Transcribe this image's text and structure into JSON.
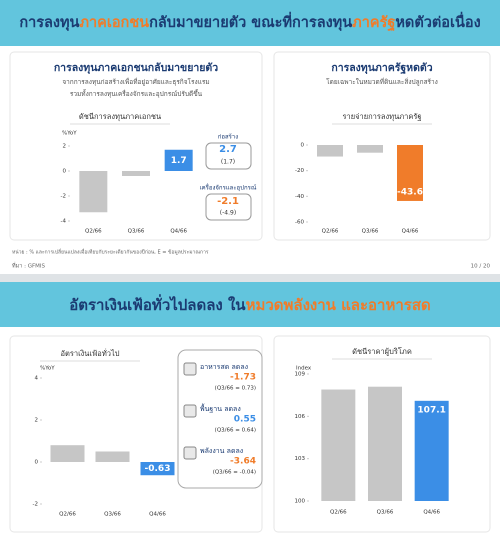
{
  "slides": [
    {
      "title_parts": [
        {
          "text": "การลงทุน",
          "color": "#1b3b72"
        },
        {
          "text": "ภาคเอกชน",
          "color": "#f07c2a"
        },
        {
          "text": "กลับมาขยายตัว ขณะที่การลงทุน",
          "color": "#1b3b72"
        },
        {
          "text": "ภาครัฐ",
          "color": "#f07c2a"
        },
        {
          "text": "หดตัวต่อเนื่อง",
          "color": "#1b3b72"
        }
      ],
      "left": {
        "heading": "การลงทุนภาคเอกชนกลับมาขยายตัว",
        "subtitle": [
          "จากการลงทุนก่อสร้างเพื่อที่อยู่อาศัยและธุรกิจโรงแรม",
          "รวมทั้งการลงทุนเครื่องจักรและอุปกรณ์ปรับดีขึ้น"
        ]
      },
      "components": [
        {
          "name": "ก่อสร้าง",
          "value": 2.7,
          "previous": "(1.7)",
          "color": "#3b8ee6"
        },
        {
          "name": "เครื่องจักรและอุปกรณ์",
          "value": -2.1,
          "previous": "(-4.9)",
          "color": "#f07c2a"
        }
      ],
      "right": {
        "heading": "การลงทุนภาครัฐหดตัว",
        "subtitle": "โดยเฉพาะในหมวดที่ดินและสิ่งปลูกสร้าง"
      },
      "footnote": "หน่วย : % และการเปลี่ยนแปลงเมื่อเทียบกับระยะเดียวกันของปีก่อน, E = ข้อมูลประมาณการ",
      "source": "ที่มา : GFMIS",
      "page": "10 / 20"
    },
    {
      "title_parts": [
        {
          "text": "อัตราเงินเฟ้อทั่วไปลดลง ใน",
          "color": "#1b3b72"
        },
        {
          "text": "หมวดพลังงาน และอาหารสด",
          "color": "#f07c2a"
        }
      ],
      "components": [
        {
          "name": "อาหารสด ลดลง",
          "value": -1.73,
          "note": "(Q3/66 = 0.73)",
          "color": "#f07c2a"
        },
        {
          "name": "พื้นฐาน ลดลง",
          "value": 0.55,
          "note": "(Q3/66 = 0.64)",
          "color": "#3b8ee6"
        },
        {
          "name": "พลังงาน ลดลง",
          "value": -3.64,
          "note": "(Q3/66 = -0.04)",
          "color": "#f07c2a"
        }
      ]
    }
  ],
  "chart_data": [
    {
      "type": "bar",
      "title": "ดัชนีการลงทุนภาคเอกชน",
      "y_label": "%YoY",
      "categories": [
        "Q2/66",
        "Q3/66",
        "Q4/66"
      ],
      "values": [
        -3.3,
        -0.4,
        1.7
      ],
      "value_labels": [
        null,
        null,
        "1.7"
      ],
      "colors": [
        "#c6c6c6",
        "#c6c6c6",
        "#3b8ee6"
      ],
      "ylim": [
        -4,
        2
      ],
      "yticks": [
        2,
        0,
        -2,
        -4
      ]
    },
    {
      "type": "bar",
      "title": "รายจ่ายการลงทุนภาครัฐ",
      "categories": [
        "Q2/66",
        "Q3/66",
        "Q4/66"
      ],
      "values": [
        -9,
        -6,
        -43.6
      ],
      "value_labels": [
        null,
        null,
        "-43.6"
      ],
      "colors": [
        "#c6c6c6",
        "#c6c6c6",
        "#f07c2a"
      ],
      "ylim": [
        -60,
        0
      ],
      "yticks": [
        0,
        -20,
        -40,
        -60
      ]
    },
    {
      "type": "bar",
      "title": "อัตราเงินเฟ้อทั่วไป",
      "y_label": "%YoY",
      "categories": [
        "Q2/66",
        "Q3/66",
        "Q4/66"
      ],
      "values": [
        0.8,
        0.5,
        -0.63
      ],
      "value_labels": [
        null,
        null,
        "-0.63"
      ],
      "colors": [
        "#c6c6c6",
        "#c6c6c6",
        "#3b8ee6"
      ],
      "ylim": [
        -2,
        4
      ],
      "yticks": [
        4,
        2,
        0,
        -2
      ]
    },
    {
      "type": "bar",
      "title": "ดัชนีราคาผู้บริโภค",
      "y_label": "Index",
      "categories": [
        "Q2/66",
        "Q3/66",
        "Q4/66"
      ],
      "values": [
        107.9,
        108.1,
        107.1
      ],
      "value_labels": [
        null,
        null,
        "107.1"
      ],
      "colors": [
        "#c6c6c6",
        "#c6c6c6",
        "#3b8ee6"
      ],
      "ylim": [
        100,
        109
      ],
      "yticks": [
        109,
        106,
        103,
        100
      ]
    }
  ]
}
